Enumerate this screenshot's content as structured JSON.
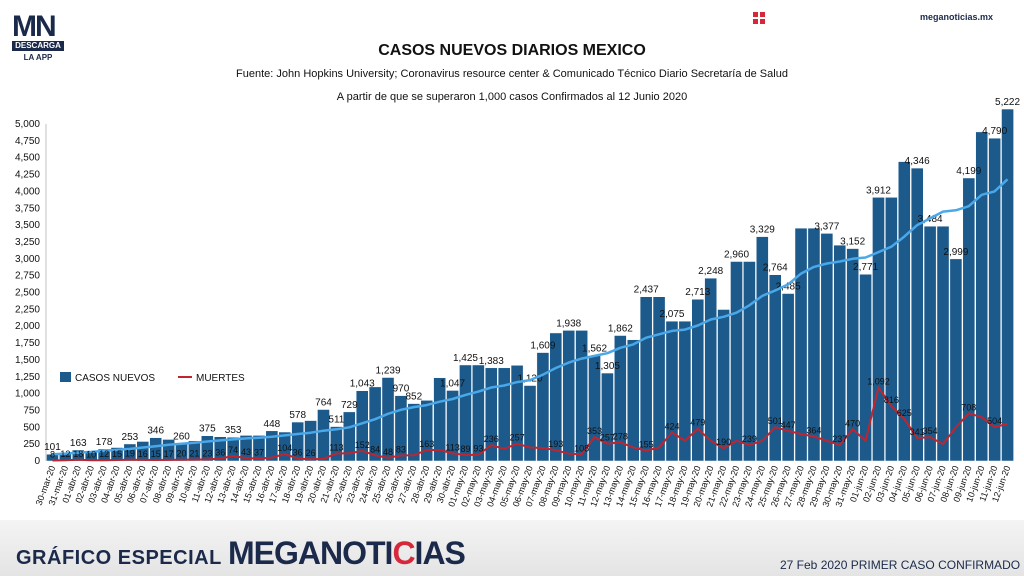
{
  "brand": {
    "logo_text_1": "MN",
    "logo_text_2": "DESCARGA",
    "logo_text_3": "LA APP",
    "site": "meganoticias.mx",
    "footer_left": "GRÁFICO ESPECIAL",
    "footer_brand_1": "MEGANOTI",
    "footer_brand_2": "C",
    "footer_brand_3": "IAS",
    "footer_right": "27 Feb 2020 PRIMER CASO CONFIRMADO"
  },
  "colors": {
    "bar": "#1d5a8c",
    "bar_edge": "#ffffff",
    "avg_line": "#4aa8e8",
    "deaths_line": "#c0242e",
    "text": "#111111"
  },
  "chart_data": {
    "type": "bar",
    "title": "CASOS NUEVOS DIARIOS MEXICO",
    "subtitle": "Fuente: John Hopkins University; Coronavirus resource center & Comunicado Técnico Diario Secretaría de Salud",
    "subtitle2": "A partir de que se superaron 1,000 casos Confirmados al 12 Junio 2020",
    "ylim": [
      0,
      5000
    ],
    "yticks": [
      "0",
      "250",
      "500",
      "750",
      "1,000",
      "1,250",
      "1,500",
      "1,750",
      "2,000",
      "2,250",
      "2,500",
      "2,750",
      "3,000",
      "3,250",
      "3,500",
      "3,750",
      "4,000",
      "4,250",
      "4,500",
      "4,750",
      "5,000"
    ],
    "legend": {
      "cases": "CASOS NUEVOS",
      "deaths": "MUERTES",
      "position": "left"
    },
    "categories": [
      "30-mar-20",
      "31-mar-20",
      "01-abr-20",
      "02-abr-20",
      "03-abr-20",
      "04-abr-20",
      "05-abr-20",
      "06-abr-20",
      "07-abr-20",
      "08-abr-20",
      "09-abr-20",
      "10-abr-20",
      "11-abr-20",
      "12-abr-20",
      "13-abr-20",
      "14-abr-20",
      "15-abr-20",
      "16-abr-20",
      "17-abr-20",
      "18-abr-20",
      "19-abr-20",
      "20-abr-20",
      "21-abr-20",
      "22-abr-20",
      "23-abr-20",
      "24-abr-20",
      "25-abr-20",
      "26-abr-20",
      "27-abr-20",
      "28-abr-20",
      "29-abr-20",
      "30-abr-20",
      "01-may-20",
      "02-may-20",
      "03-may-20",
      "04-may-20",
      "05-may-20",
      "06-may-20",
      "07-may-20",
      "08-may-20",
      "09-may-20",
      "10-may-20",
      "11-may-20",
      "12-may-20",
      "13-may-20",
      "14-may-20",
      "15-may-20",
      "16-may-20",
      "17-may-20",
      "18-may-20",
      "19-may-20",
      "20-may-20",
      "21-may-20",
      "22-may-20",
      "23-may-20",
      "24-may-20",
      "25-may-20",
      "26-may-20",
      "27-may-20",
      "28-may-20",
      "29-may-20",
      "30-may-20",
      "31-may-20",
      "01-jun-20",
      "02-jun-20",
      "03-jun-20",
      "04-jun-20",
      "05-jun-20",
      "06-jun-20",
      "07-jun-20",
      "08-jun-20",
      "09-jun-20",
      "10-jun-20",
      "11-jun-20",
      "12-jun-20"
    ],
    "series": [
      {
        "name": "CASOS NUEVOS",
        "values": [
          101,
          101,
          163,
          140,
          178,
          200,
          253,
          290,
          346,
          320,
          260,
          300,
          375,
          360,
          353,
          380,
          380,
          448,
          430,
          578,
          600,
          764,
          511,
          729,
          1043,
          1100,
          1239,
          970,
          852,
          900,
          1236,
          1047,
          1425,
          1425,
          1383,
          1383,
          1420,
          1120,
          1609,
          1900,
          1938,
          1938,
          1562,
          1305,
          1862,
          1800,
          2437,
          2437,
          2075,
          2075,
          2400,
          2713,
          2248,
          2960,
          2960,
          3329,
          2764,
          2485,
          3455,
          3455,
          3377,
          3203,
          3152,
          2771,
          3912,
          3912,
          4442,
          4346,
          3484,
          3484,
          2999,
          4199,
          4883,
          4790,
          5222
        ],
        "labels": {
          "0": "101",
          "2": "163",
          "4": "178",
          "6": "253",
          "8": "346",
          "10": "260",
          "12": "375",
          "14": "353",
          "17": "448",
          "19": "578",
          "21": "764",
          "22": "511",
          "23": "729",
          "24": "1,043",
          "26": "1,239",
          "27": "970",
          "28": "852",
          "31": "1,047",
          "32": "1,425",
          "34": "1,383",
          "37": "1,120",
          "38": "1,609",
          "40": "1,938",
          "42": "1,562",
          "43": "1,305",
          "44": "1,862",
          "46": "2,437",
          "48": "2,075",
          "50": "2,713",
          "51": "2,248",
          "53": "2,960",
          "55": "3,329",
          "56": "2,764",
          "57": "2,485",
          "60": "3,377",
          "62": "3,152",
          "63": "2,771",
          "64": "3,912",
          "67": "4,346",
          "68": "3,484",
          "70": "2,999",
          "71": "4,199",
          "73": "4,790",
          "74": "5,222"
        }
      },
      {
        "name": "MUERTES",
        "values": [
          8,
          12,
          18,
          10,
          12,
          15,
          19,
          16,
          15,
          17,
          20,
          21,
          23,
          36,
          74,
          43,
          37,
          50,
          104,
          36,
          26,
          31,
          113,
          113,
          152,
          84,
          48,
          83,
          85,
          163,
          163,
          113,
          89,
          93,
          236,
          180,
          257,
          200,
          193,
          160,
          108,
          100,
          353,
          257,
          278,
          200,
          155,
          200,
          424,
          300,
          479,
          300,
          190,
          300,
          239,
          300,
          501,
          447,
          400,
          364,
          300,
          237,
          470,
          300,
          1092,
          816,
          625,
          341,
          354,
          250,
          500,
          708,
          650,
          504,
          550
        ],
        "labels": {
          "0": "8",
          "1": "12",
          "2": "18",
          "3": "10",
          "4": "12",
          "5": "15",
          "6": "19",
          "7": "16",
          "8": "15",
          "9": "17",
          "10": "20",
          "11": "21",
          "12": "23",
          "13": "36",
          "14": "74",
          "15": "43",
          "16": "37",
          "18": "104",
          "19": "36",
          "20": "26",
          "22": "113",
          "24": "152",
          "25": "84",
          "26": "48",
          "27": "83",
          "29": "163",
          "31": "113",
          "32": "89",
          "33": "93",
          "34": "236",
          "36": "257",
          "39": "193",
          "41": "108",
          "42": "353",
          "43": "257",
          "44": "278",
          "46": "155",
          "48": "424",
          "50": "479",
          "52": "190",
          "54": "239",
          "56": "501",
          "57": "447",
          "59": "364",
          "61": "237",
          "62": "470",
          "64": "1,092",
          "65": "816",
          "66": "625",
          "67": "341",
          "68": "354",
          "71": "708",
          "73": "504"
        }
      },
      {
        "name": "",
        "values": [
          101,
          110,
          125,
          135,
          150,
          165,
          180,
          200,
          220,
          240,
          255,
          270,
          290,
          305,
          320,
          335,
          345,
          360,
          380,
          400,
          420,
          450,
          470,
          500,
          560,
          620,
          700,
          760,
          800,
          830,
          880,
          920,
          980,
          1030,
          1090,
          1120,
          1170,
          1200,
          1280,
          1380,
          1460,
          1520,
          1560,
          1600,
          1680,
          1730,
          1830,
          1880,
          1930,
          1950,
          2010,
          2100,
          2140,
          2200,
          2310,
          2450,
          2530,
          2620,
          2780,
          2880,
          2930,
          2960,
          3000,
          3020,
          3100,
          3180,
          3330,
          3500,
          3600,
          3700,
          3720,
          3780,
          3950,
          4000,
          4180
        ]
      }
    ]
  }
}
